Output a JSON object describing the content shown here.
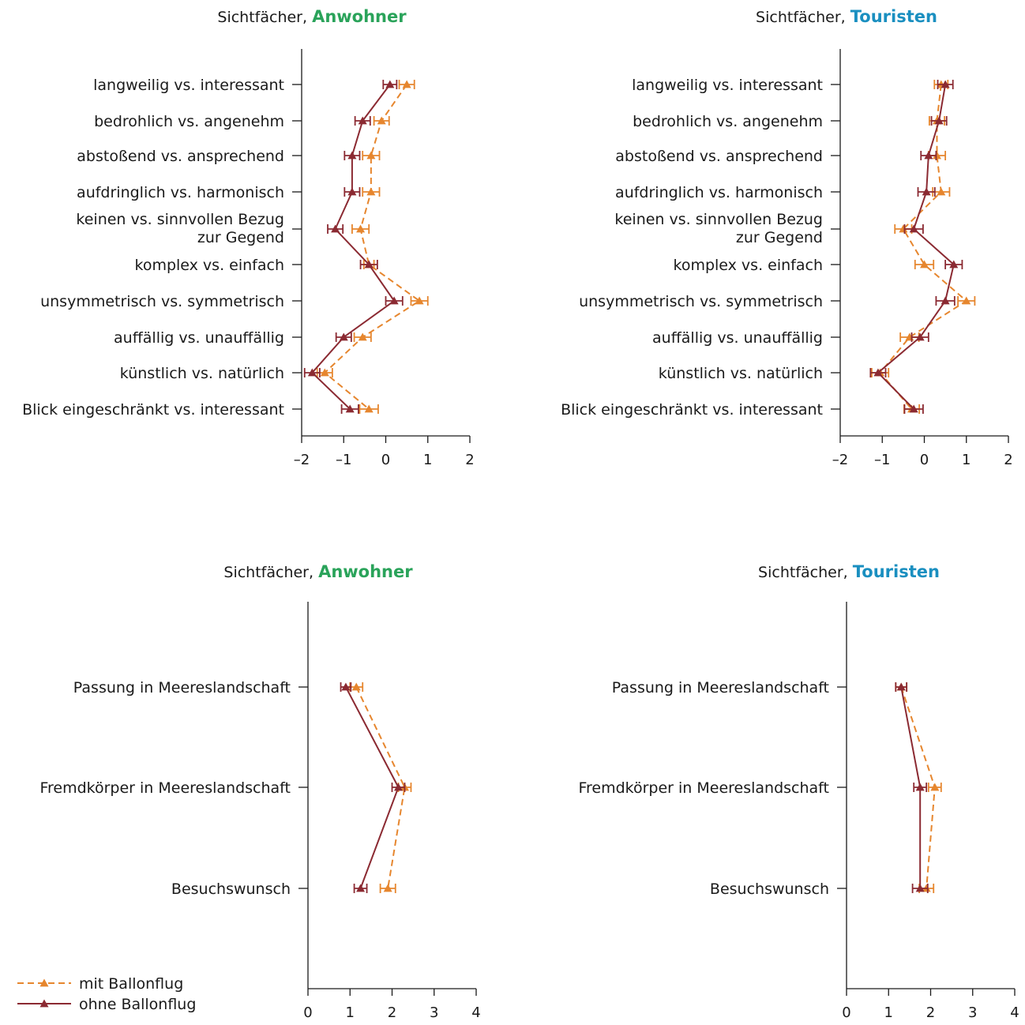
{
  "colors": {
    "mit": "#e6862e",
    "ohne": "#8b2a32",
    "anwohner": "#2aa35a",
    "touristen": "#1a8fc0",
    "axis": "#1a1a1a"
  },
  "legend": {
    "items": [
      {
        "label": "mit Ballonflug",
        "style": "dashed"
      },
      {
        "label": "ohne Ballonflug",
        "style": "solid"
      }
    ]
  },
  "chart_data": [
    {
      "type": "line",
      "title_prefix": "Sichtfächer, ",
      "title_group": "Anwohner",
      "title_color": "#2aa35a",
      "xlim": [
        -2,
        2
      ],
      "xticks": [
        "–2",
        "–1",
        "0",
        "1",
        "2"
      ],
      "categories": [
        "langweilig vs. interessant",
        "bedrohlich vs. angenehm",
        "abstoßend vs. ansprechend",
        "aufdringlich vs. harmonisch",
        [
          "keinen vs. sinnvollen Bezug",
          "zur Gegend"
        ],
        "komplex vs. einfach",
        "unsymmetrisch vs. symmetrisch",
        "auffällig vs. unauffällig",
        "künstlich vs. natürlich",
        "Blick eingeschränkt vs. interessant"
      ],
      "series": [
        {
          "name": "mit Ballonflug",
          "values": [
            0.5,
            -0.1,
            -0.35,
            -0.35,
            -0.6,
            -0.4,
            0.8,
            -0.55,
            -1.45,
            -0.4
          ],
          "err": [
            0.18,
            0.18,
            0.2,
            0.2,
            0.2,
            0.12,
            0.2,
            0.2,
            0.18,
            0.22
          ]
        },
        {
          "name": "ohne Ballonflug",
          "values": [
            0.1,
            -0.55,
            -0.8,
            -0.8,
            -1.2,
            -0.4,
            0.2,
            -1.0,
            -1.75,
            -0.85
          ],
          "err": [
            0.16,
            0.18,
            0.18,
            0.18,
            0.18,
            0.2,
            0.2,
            0.18,
            0.18,
            0.2
          ]
        }
      ]
    },
    {
      "type": "line",
      "title_prefix": "Sichtfächer, ",
      "title_group": "Touristen",
      "title_color": "#1a8fc0",
      "xlim": [
        -2,
        2
      ],
      "xticks": [
        "–2",
        "–1",
        "0",
        "1",
        "2"
      ],
      "categories": [
        "langweilig vs. interessant",
        "bedrohlich vs. angenehm",
        "abstoßend vs. ansprechend",
        "aufdringlich vs. harmonisch",
        [
          "keinen vs. sinnvollen Bezug",
          "zur Gegend"
        ],
        "komplex vs. einfach",
        "unsymmetrisch vs. symmetrisch",
        "auffällig vs. unauffällig",
        "künstlich vs. natürlich",
        "Blick eingeschränkt vs. interessant"
      ],
      "series": [
        {
          "name": "mit Ballonflug",
          "values": [
            0.4,
            0.3,
            0.3,
            0.4,
            -0.5,
            0.0,
            1.0,
            -0.35,
            -1.05,
            -0.3
          ],
          "err": [
            0.16,
            0.18,
            0.2,
            0.2,
            0.2,
            0.22,
            0.2,
            0.22,
            0.2,
            0.18
          ]
        },
        {
          "name": "ohne Ballonflug",
          "values": [
            0.5,
            0.35,
            0.1,
            0.05,
            -0.25,
            0.7,
            0.5,
            -0.1,
            -1.1,
            -0.25
          ],
          "err": [
            0.18,
            0.18,
            0.18,
            0.2,
            0.22,
            0.2,
            0.22,
            0.2,
            0.18,
            0.22
          ]
        }
      ]
    },
    {
      "type": "line",
      "title_prefix": "Sichtfächer, ",
      "title_group": "Anwohner",
      "title_color": "#2aa35a",
      "xlim": [
        0,
        4
      ],
      "xticks": [
        "0",
        "1",
        "2",
        "3",
        "4"
      ],
      "categories": [
        "Passung in Meereslandschaft",
        "Fremdkörper in Meereslandschaft",
        "Besuchswunsch"
      ],
      "series": [
        {
          "name": "mit Ballonflug",
          "values": [
            1.15,
            2.3,
            1.9
          ],
          "err": [
            0.15,
            0.15,
            0.18
          ]
        },
        {
          "name": "ohne Ballonflug",
          "values": [
            0.9,
            2.15,
            1.25
          ],
          "err": [
            0.12,
            0.15,
            0.15
          ]
        }
      ]
    },
    {
      "type": "line",
      "title_prefix": "Sichtfächer, ",
      "title_group": "Touristen",
      "title_color": "#1a8fc0",
      "xlim": [
        0,
        4
      ],
      "xticks": [
        "0",
        "1",
        "2",
        "3",
        "4"
      ],
      "categories": [
        "Passung in Meereslandschaft",
        "Fremdkörper in Meereslandschaft",
        "Besuchswunsch"
      ],
      "series": [
        {
          "name": "mit Ballonflug",
          "values": [
            1.3,
            2.1,
            1.9
          ],
          "err": [
            0.13,
            0.15,
            0.17
          ]
        },
        {
          "name": "ohne Ballonflug",
          "values": [
            1.3,
            1.75,
            1.75
          ],
          "err": [
            0.13,
            0.15,
            0.18
          ]
        }
      ]
    }
  ]
}
